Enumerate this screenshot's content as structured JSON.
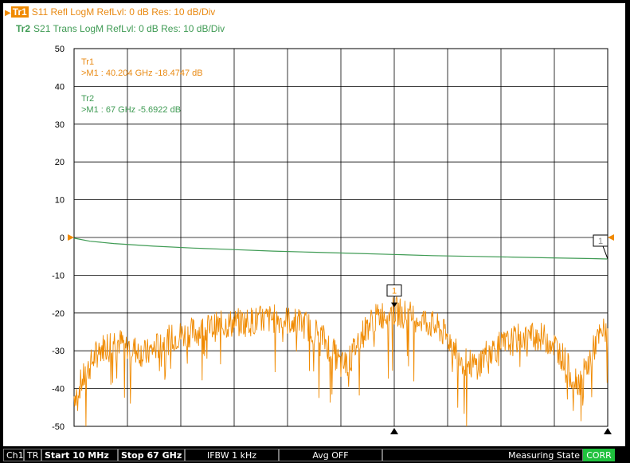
{
  "header": {
    "trace1": {
      "tag": "Tr1",
      "text": "S11 Refl LogM RefLvl: 0  dB Res: 10  dB/Div",
      "color": "#f08a00"
    },
    "trace2": {
      "tag": "Tr2",
      "text": "S21 Trans LogM RefLvl: 0  dB Res: 10  dB/Div",
      "color": "#3f9b54"
    }
  },
  "markers_readout": {
    "tr1_label": "Tr1",
    "tr1_value": ">M1  :   40.204 GHz  -18.4747  dB",
    "tr2_label": "Tr2",
    "tr2_value": ">M1  :   67 GHz  -5.6922  dB"
  },
  "marker_tag": "1",
  "status_bar": {
    "channel": "Ch1",
    "trigger": "TR",
    "start": "Start 10 MHz",
    "stop": "Stop 67 GHz",
    "ifbw": "IFBW 1 kHz",
    "avg": "Avg OFF",
    "state": "Measuring State",
    "corr": "CORR"
  },
  "chart_data": {
    "type": "line",
    "xlabel": "",
    "ylabel": "",
    "xlim": [
      0.01,
      67
    ],
    "ylim": [
      -50,
      50
    ],
    "x_unit": "GHz",
    "y_unit": "dB",
    "y_ticks": [
      "50",
      "40",
      "30",
      "20",
      "10",
      "0",
      "-10",
      "-20",
      "-30",
      "-40",
      "-50"
    ],
    "grid": true,
    "series": [
      {
        "name": "Tr1",
        "color": "#f08a00",
        "x": [
          0.01,
          1.5,
          3,
          5,
          7,
          9,
          11,
          13,
          15,
          17,
          19,
          21,
          23,
          25,
          27,
          29,
          31,
          32.5,
          33.5,
          34.5,
          35.5,
          37,
          38.5,
          40.2,
          42,
          44,
          46,
          47.5,
          49,
          50.5,
          52,
          54,
          56,
          58,
          60,
          61.5,
          62.5,
          63.5,
          64.5,
          65.5,
          67
        ],
        "y": [
          -42,
          -36,
          -30,
          -27,
          -29,
          -31,
          -28,
          -26,
          -25,
          -24,
          -23,
          -22.5,
          -22,
          -21.5,
          -22,
          -23,
          -26,
          -30,
          -34,
          -33,
          -28,
          -23,
          -20.5,
          -19.5,
          -20.5,
          -22,
          -24.5,
          -28,
          -33,
          -34,
          -30,
          -28.5,
          -26.5,
          -26,
          -27.5,
          -32,
          -37,
          -38,
          -34,
          -28,
          -23.5
        ]
      },
      {
        "name": "Tr2",
        "color": "#3f9b54",
        "x": [
          0.01,
          2,
          5,
          10,
          15,
          20,
          25,
          30,
          35,
          40,
          45,
          50,
          55,
          60,
          65,
          67
        ],
        "y": [
          -0.2,
          -1.0,
          -1.6,
          -2.3,
          -2.8,
          -3.2,
          -3.6,
          -3.9,
          -4.2,
          -4.5,
          -4.8,
          -5.0,
          -5.2,
          -5.4,
          -5.6,
          -5.69
        ]
      }
    ],
    "markers": [
      {
        "trace": "Tr1",
        "label": "1",
        "x": 40.204,
        "y": -18.4747
      },
      {
        "trace": "Tr2",
        "label": "1",
        "x": 67,
        "y": -5.6922
      }
    ]
  }
}
